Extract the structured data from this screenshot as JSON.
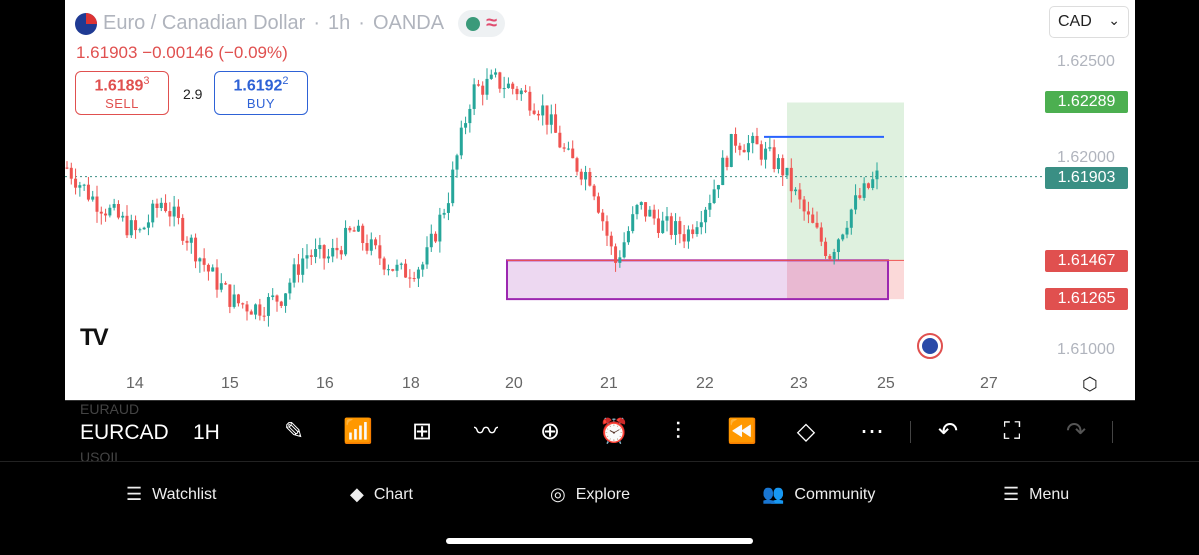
{
  "header": {
    "title": "Euro / Canadian Dollar",
    "interval": "1h",
    "exchange": "OANDA",
    "last": "1.61903",
    "change": "−0.00146",
    "change_pct": "(−0.09%)"
  },
  "trade": {
    "sell_price": "1.6189",
    "sell_sup": "3",
    "sell_label": "SELL",
    "spread": "2.9",
    "buy_price": "1.6192",
    "buy_sup": "2",
    "buy_label": "BUY"
  },
  "currency_select": "CAD",
  "price_axis": {
    "labels": [
      "1.62500",
      "1.62000",
      "1.61000"
    ],
    "tags": {
      "target": {
        "value": "1.62289",
        "color": "#4caf50"
      },
      "current": {
        "value": "1.61903",
        "color": "#3a8f84"
      },
      "entry": {
        "value": "1.61467",
        "color": "#e0504f"
      },
      "stop": {
        "value": "1.61265",
        "color": "#e0504f"
      }
    }
  },
  "time_axis": [
    "14",
    "15",
    "16",
    "18",
    "20",
    "21",
    "22",
    "23",
    "25",
    "27"
  ],
  "toolbar": {
    "symbol": "EURCAD",
    "timeframe": "1H",
    "ghost_top": "EURAUD",
    "ghost_bottom": "USOIL"
  },
  "nav": {
    "watchlist": "Watchlist",
    "chart": "Chart",
    "explore": "Explore",
    "community": "Community",
    "menu": "Menu"
  },
  "colors": {
    "up": "#26a69a",
    "down": "#ef5350",
    "zone": "#9c27b0",
    "resistance": "#2962ff"
  },
  "chart_data": {
    "type": "candlestick",
    "symbol": "EURCAD",
    "interval": "1h",
    "ylim": [
      1.609,
      1.6265
    ],
    "x_ticks": [
      "14",
      "15",
      "16",
      "18",
      "20",
      "21",
      "22",
      "23",
      "25",
      "27"
    ],
    "approx_close_path": [
      1.6195,
      1.618,
      1.617,
      1.616,
      1.6178,
      1.616,
      1.614,
      1.6125,
      1.6122,
      1.6128,
      1.615,
      1.6148,
      1.6162,
      1.615,
      1.614,
      1.6145,
      1.618,
      1.6235,
      1.624,
      1.6235,
      1.6225,
      1.62,
      1.619,
      1.6145,
      1.6175,
      1.6165,
      1.616,
      1.618,
      1.621,
      1.6205,
      1.6195,
      1.617,
      1.615,
      1.6175,
      1.619
    ],
    "levels": {
      "resistance": 1.6211,
      "demand_zone": [
        1.61265,
        1.61467
      ],
      "take_profit": 1.62289,
      "current": 1.61903
    }
  }
}
